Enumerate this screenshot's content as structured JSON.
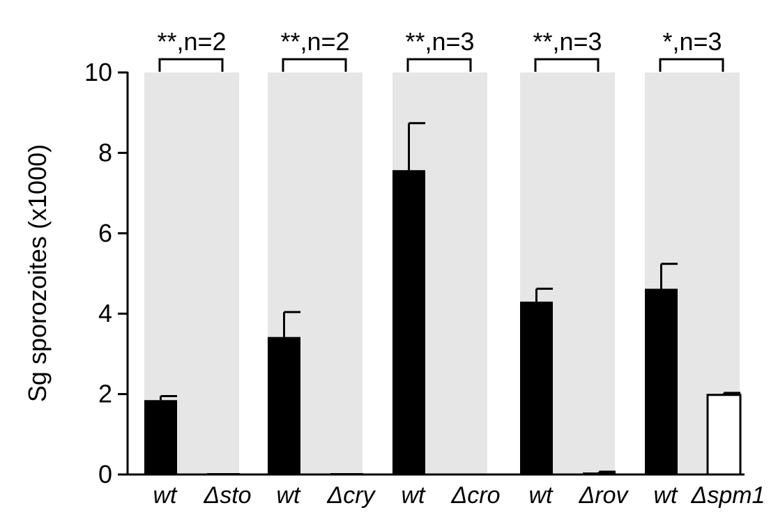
{
  "chart_data": {
    "type": "bar",
    "ylabel": "Sg sporozoites (x1000)",
    "xlabel": "",
    "ylim": [
      0,
      10
    ],
    "yticks": [
      0,
      2,
      4,
      6,
      8,
      10
    ],
    "grid": false,
    "colors": {
      "wt": "#000000",
      "mutant_fill": "#ffffff",
      "group_background": "#e6e6e6",
      "axis": "#000000"
    },
    "categories": [
      "wt",
      "Δsto",
      "wt",
      "Δcry",
      "wt",
      "Δcro",
      "wt",
      "Δrov",
      "wt",
      "Δspm1"
    ],
    "values": [
      1.85,
      0.02,
      3.42,
      0.03,
      7.57,
      0.0,
      4.3,
      0.05,
      4.62,
      1.98
    ],
    "errors": [
      0.1,
      0.0,
      0.62,
      0.0,
      1.17,
      0.0,
      0.32,
      0.02,
      0.62,
      0.05
    ],
    "groups": [
      {
        "significance": "**,n=2"
      },
      {
        "significance": "**,n=2"
      },
      {
        "significance": "**,n=3"
      },
      {
        "significance": "**,n=3"
      },
      {
        "significance": "*,n=3"
      }
    ]
  }
}
